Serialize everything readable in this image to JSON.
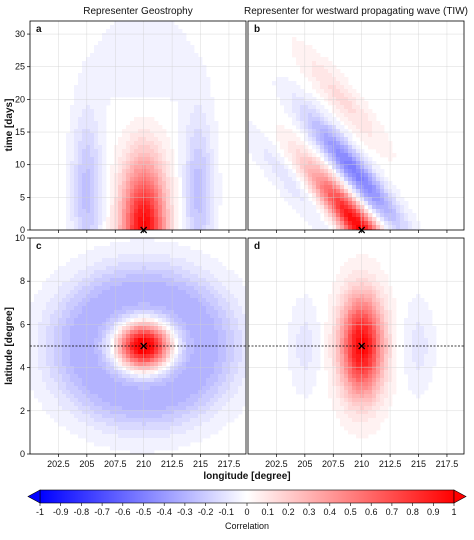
{
  "chart_data": [
    {
      "panel": "a",
      "type": "heatmap",
      "title": "Representer Geostrophy",
      "ylabel": "time [days]",
      "xlim": [
        200,
        219
      ],
      "ylim": [
        0,
        32
      ],
      "xticks": [
        202.5,
        205,
        207.5,
        210,
        212.5,
        215,
        217.5
      ],
      "yticks": [
        0,
        5,
        10,
        15,
        20,
        25,
        30
      ],
      "marker": {
        "x": 210,
        "y": 0
      },
      "structure": "Standing pattern: positive lobe centered at longitude 210 (width ~212.5-207.5) decaying with time; negative lobes near 205 and 215; peak correlation ~1 at day 0"
    },
    {
      "panel": "b",
      "type": "heatmap",
      "title": "Representer for westward propagating wave (TIW)",
      "xlim": [
        200,
        219
      ],
      "ylim": [
        0,
        32
      ],
      "xticks": [
        202.5,
        205,
        207.5,
        210,
        212.5,
        215,
        217.5
      ],
      "yticks": [
        0,
        5,
        10,
        15,
        20,
        25,
        30
      ],
      "marker": {
        "x": 210,
        "y": 0
      },
      "structure": "Diagonal banded pattern indicating westward propagation; positive band from (210,0) toward (204,14); negative band from (211,3) toward (215,15)"
    },
    {
      "panel": "c",
      "type": "heatmap",
      "ylabel": "latitude [degree]",
      "xlabel": "longitude [degree]",
      "xlim": [
        200,
        219
      ],
      "ylim": [
        0,
        10
      ],
      "xticks": [
        202.5,
        205,
        207.5,
        210,
        212.5,
        215,
        217.5
      ],
      "yticks": [
        0,
        2,
        4,
        6,
        8,
        10
      ],
      "marker": {
        "x": 210,
        "y": 5
      },
      "hline": 5,
      "structure": "Positive circular core at (210,5) surrounded by a broad negative ring (~ -0.3)"
    },
    {
      "panel": "d",
      "type": "heatmap",
      "xlabel": "longitude [degree]",
      "xlim": [
        200,
        219
      ],
      "ylim": [
        0,
        10
      ],
      "xticks": [
        202.5,
        205,
        207.5,
        210,
        212.5,
        215,
        217.5
      ],
      "yticks": [
        0,
        2,
        4,
        6,
        8,
        10
      ],
      "marker": {
        "x": 210,
        "y": 5
      },
      "hline": 5,
      "structure": "Positive elongated core at (210,5), stretched in latitude; weak negative lobes near 205 and 215"
    }
  ],
  "colorbar": {
    "label": "Correlation",
    "ticks": [
      "-1",
      "-0.9",
      "-0.8",
      "-0.7",
      "-0.6",
      "-0.5",
      "-0.4",
      "-0.3",
      "-0.2",
      "-0.1",
      "0",
      "0.1",
      "0.2",
      "0.3",
      "0.4",
      "0.5",
      "0.6",
      "0.7",
      "0.8",
      "0.9",
      "1"
    ],
    "range": [
      -1,
      1
    ],
    "colors": {
      "negative": "#0000ff",
      "zero": "#ffffff",
      "positive": "#ff0000"
    }
  },
  "panel_letters": [
    "a",
    "b",
    "c",
    "d"
  ]
}
